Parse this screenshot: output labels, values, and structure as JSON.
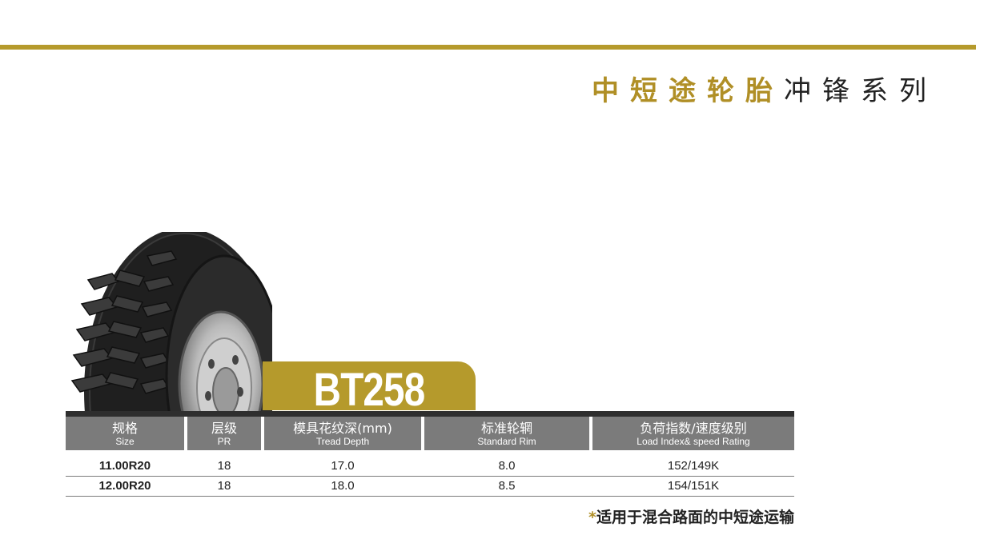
{
  "series_title": {
    "highlight": "中短途轮胎",
    "rest": "冲锋系列"
  },
  "model": "BT258",
  "table": {
    "headers": [
      {
        "cn": "规格",
        "en": "Size"
      },
      {
        "cn": "层级",
        "en": "PR"
      },
      {
        "cn": "模具花纹深(mm)",
        "en": "Tread Depth"
      },
      {
        "cn": "标准轮辋",
        "en": "Standard Rim"
      },
      {
        "cn": "负荷指数/速度级别",
        "en": "Load Index& speed Rating"
      }
    ],
    "rows": [
      {
        "size": "11.00R20",
        "pr": "18",
        "depth": "17.0",
        "rim": "8.0",
        "load": "152/149K"
      },
      {
        "size": "12.00R20",
        "pr": "18",
        "depth": "18.0",
        "rim": "8.5",
        "load": "154/151K"
      }
    ]
  },
  "footnote": {
    "star": "*",
    "text": "适用于混合路面的中短途运输"
  },
  "colors": {
    "accent_gold": "#b59a2c",
    "header_gray": "#7b7b7b"
  }
}
